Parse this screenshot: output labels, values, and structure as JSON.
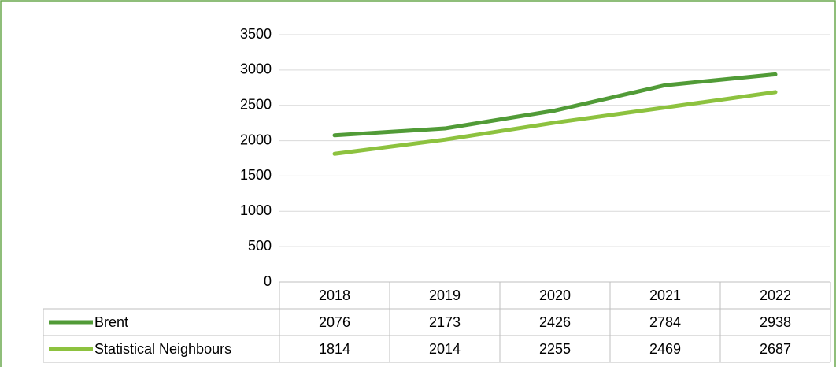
{
  "chart_data": {
    "type": "line",
    "categories": [
      "2018",
      "2019",
      "2020",
      "2021",
      "2022"
    ],
    "series": [
      {
        "name": "Brent",
        "color": "#519b37",
        "values": [
          2076,
          2173,
          2426,
          2784,
          2938
        ]
      },
      {
        "name": "Statistical Neighbours",
        "color": "#8dc23f",
        "values": [
          1814,
          2014,
          2255,
          2469,
          2687
        ]
      }
    ],
    "ylim": [
      0,
      3500
    ],
    "yticks": [
      0,
      500,
      1000,
      1500,
      2000,
      2500,
      3000,
      3500
    ],
    "grid": true
  }
}
